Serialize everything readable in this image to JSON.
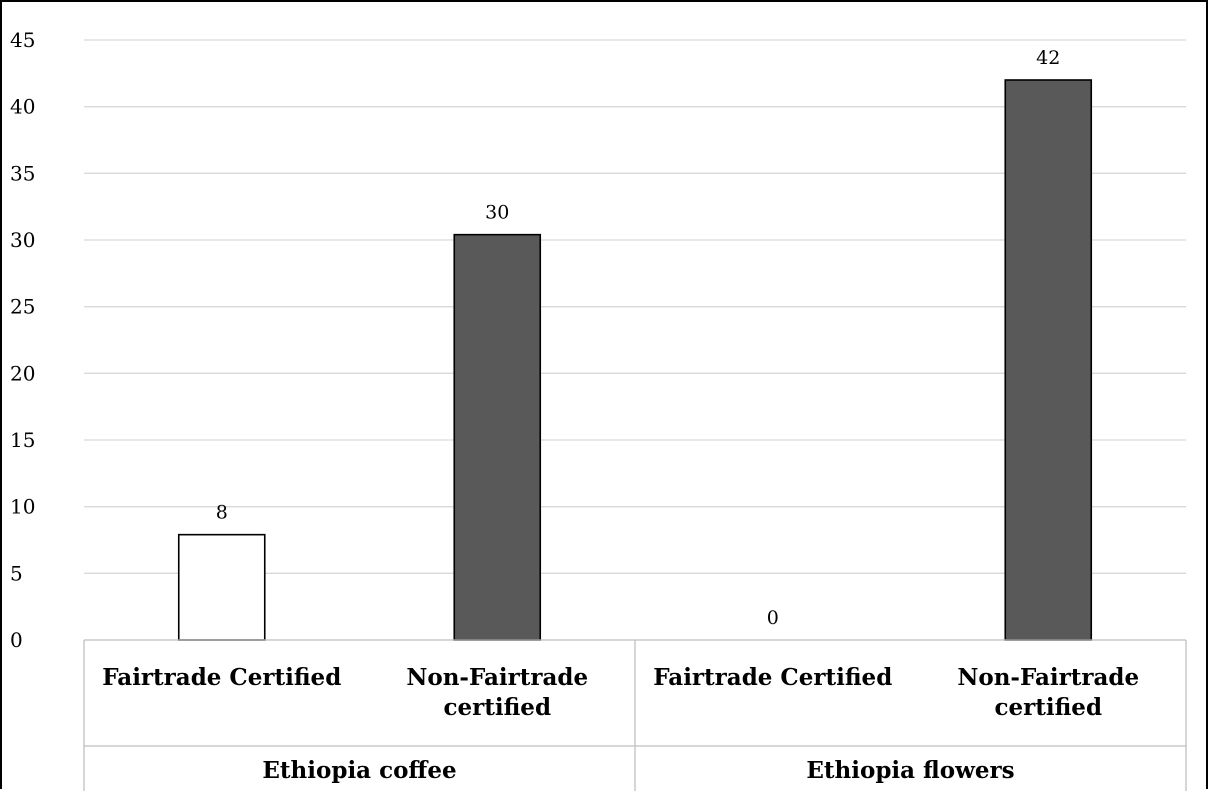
{
  "chart_data": {
    "type": "bar",
    "title": "",
    "xlabel": "",
    "ylabel": "",
    "ylim": [
      0,
      45
    ],
    "yticks": [
      0,
      5,
      10,
      15,
      20,
      25,
      30,
      35,
      40,
      45
    ],
    "grid": true,
    "legend": "none",
    "groups": [
      {
        "name": "Ethiopia coffee",
        "bars": [
          {
            "label": "Fairtrade Certified",
            "value": 7.9,
            "data_label": "8",
            "fill": "#ffffff"
          },
          {
            "label": "Non-Fairtrade certified",
            "value": 30.4,
            "data_label": "30",
            "fill": "#595959"
          }
        ]
      },
      {
        "name": "Ethiopia flowers",
        "bars": [
          {
            "label": "Fairtrade Certified",
            "value": 0,
            "data_label": "0",
            "fill": "#ffffff"
          },
          {
            "label": "Non-Fairtrade certified",
            "value": 42,
            "data_label": "42",
            "fill": "#595959"
          }
        ]
      }
    ],
    "colors": {
      "certified_fill": "#ffffff",
      "non_certified_fill": "#595959",
      "bar_stroke": "#000000",
      "gridline": "#d9d9d9",
      "axis": "#bfbfbf"
    }
  }
}
